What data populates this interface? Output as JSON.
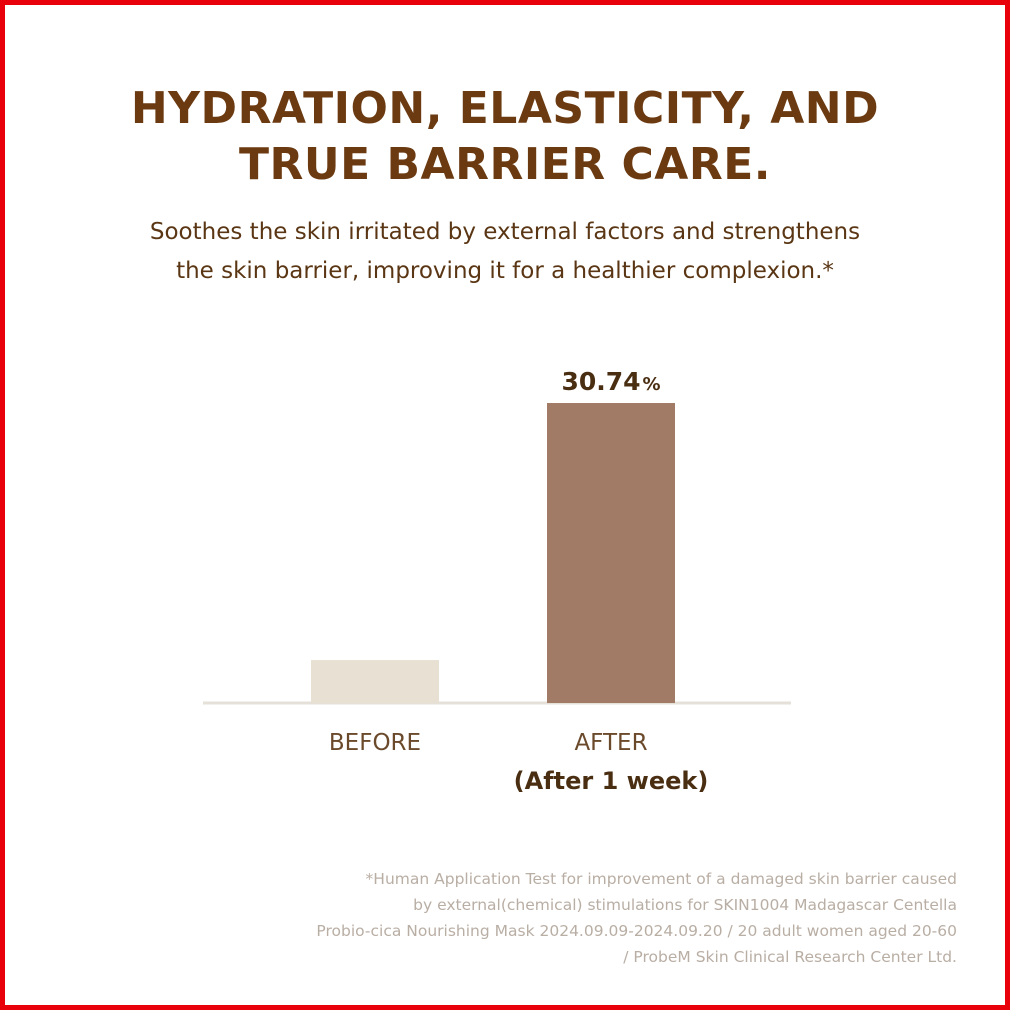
{
  "header": {
    "title_line1": "HYDRATION, ELASTICITY, AND",
    "title_line2": "TRUE BARRIER CARE.",
    "subtitle_line1": "Soothes the skin irritated by external factors and strengthens",
    "subtitle_line2": "the skin barrier, improving it for a healthier complexion.*"
  },
  "chart_data": {
    "type": "bar",
    "title": "",
    "xlabel": "",
    "ylabel": "",
    "categories": [
      "BEFORE",
      "AFTER"
    ],
    "category_sublabels": [
      "",
      "(After 1 week)"
    ],
    "values": [
      4.4,
      30.74
    ],
    "value_labels": [
      null,
      "30.74"
    ],
    "value_unit": "%",
    "ylim": [
      0,
      30.74
    ],
    "grid": false,
    "bar_colors": [
      "#e8e0d3",
      "#a17b65"
    ],
    "axis_color": "#e6e1d8",
    "label_color": "#6b4a2b",
    "value_label_color": "#4a2e12"
  },
  "footnote": {
    "line1": "*Human Application Test for improvement of a damaged skin barrier caused",
    "line2": "by external(chemical) stimulations for SKIN1004 Madagascar Centella",
    "line3": "Probio-cica Nourishing Mask 2024.09.09-2024.09.20 / 20 adult women aged 20-60",
    "line4": "/ ProbeM Skin Clinical Research Center Ltd."
  },
  "colors": {
    "border": "#e8000b",
    "title": "#6b3a11",
    "subtitle": "#5a3614",
    "footnote": "#b9aea4"
  }
}
